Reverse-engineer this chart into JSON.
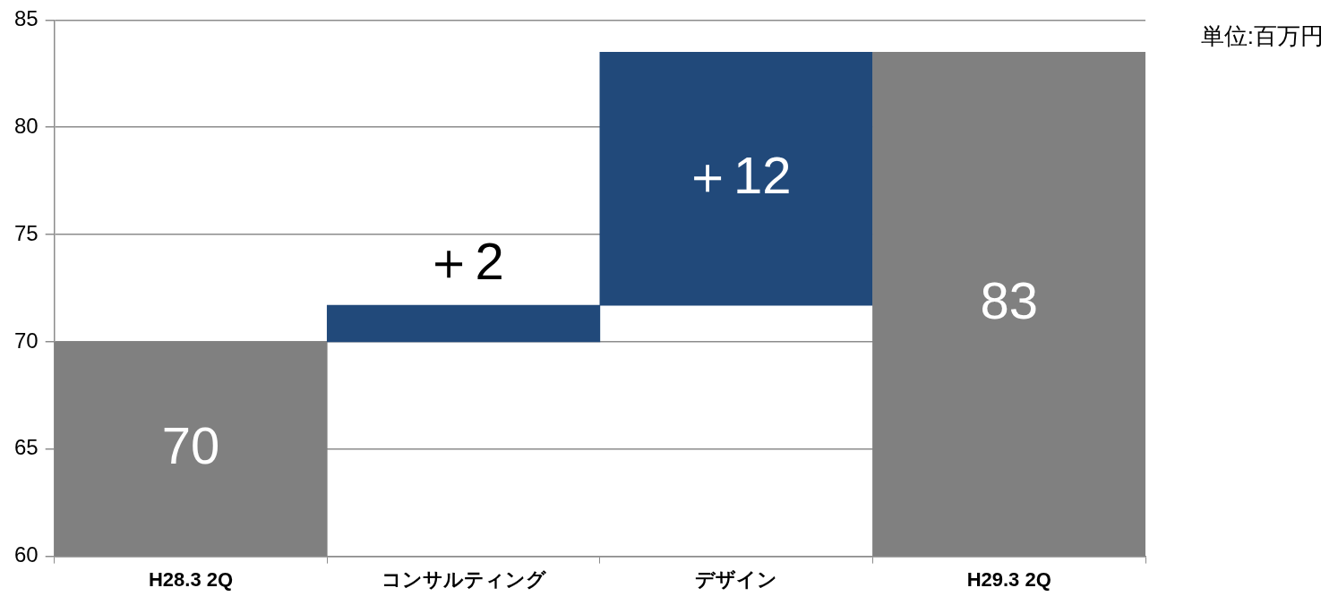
{
  "chart_data": {
    "type": "bar",
    "categories": [
      "H28.3 2Q",
      "コンサルティング",
      "デザイン",
      "H29.3 2Q"
    ],
    "values": [
      70,
      1.7,
      11.8,
      83.5
    ],
    "base": [
      null,
      70,
      71.7,
      null
    ],
    "colors": [
      "#808080",
      "#21497a",
      "#21497a",
      "#808080"
    ],
    "value_labels": [
      "70",
      "＋2",
      "＋12",
      "83"
    ],
    "ylim": [
      60,
      85
    ],
    "yticks": [
      60,
      65,
      70,
      75,
      80,
      85
    ],
    "grid": "y",
    "legend": false,
    "annotations": [
      "単位:百万円"
    ]
  }
}
